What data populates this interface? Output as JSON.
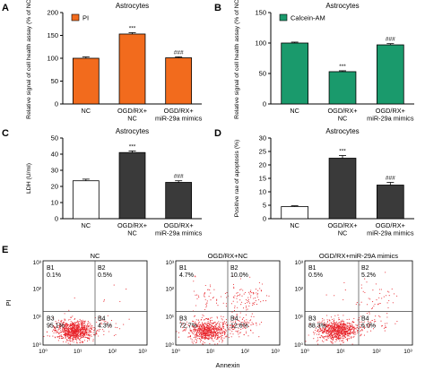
{
  "figure": {
    "panels": [
      {
        "letter": "A",
        "type": "bar",
        "title": "Astrocytes",
        "ylabel": "Relative signal of cell health assay (% of NC)",
        "ylim": [
          0,
          200
        ],
        "yticks": [
          0,
          50,
          100,
          150,
          200
        ],
        "categories": [
          [
            "NC"
          ],
          [
            "OGD/RX+",
            "NC"
          ],
          [
            "OGD/RX+",
            "miR-29a mimics"
          ]
        ],
        "values": [
          100,
          153,
          101
        ],
        "errors": [
          3,
          3,
          2
        ],
        "significance": [
          "",
          "***",
          "###"
        ],
        "legend": "PI",
        "colors": [
          "#f26b1d",
          "#f26b1d",
          "#f26b1d"
        ]
      },
      {
        "letter": "B",
        "type": "bar",
        "title": "Astrocytes",
        "ylabel": "Relative signal of cell health assay (% of NC)",
        "ylim": [
          0,
          150
        ],
        "yticks": [
          0,
          50,
          100,
          150
        ],
        "categories": [
          [
            "NC"
          ],
          [
            "OGD/RX+",
            "NC"
          ],
          [
            "OGD/RX+",
            "miR-29a mimics"
          ]
        ],
        "values": [
          100,
          53,
          97
        ],
        "errors": [
          1.5,
          1.5,
          2
        ],
        "significance": [
          "",
          "***",
          "###"
        ],
        "legend": "Calcein-AM",
        "colors": [
          "#1a9a6c",
          "#1a9a6c",
          "#1a9a6c"
        ]
      },
      {
        "letter": "C",
        "type": "bar",
        "title": "Astrocytes",
        "ylabel": "LDH (U/ml)",
        "ylim": [
          0,
          50
        ],
        "yticks": [
          0,
          10,
          20,
          30,
          40,
          50
        ],
        "categories": [
          [
            "NC"
          ],
          [
            "OGD/RX+",
            "NC"
          ],
          [
            "OGD/RX+",
            "miR-29a mimics"
          ]
        ],
        "values": [
          23.5,
          41,
          22.5
        ],
        "errors": [
          1,
          1,
          1
        ],
        "significance": [
          "",
          "***",
          "###"
        ],
        "legend": "",
        "colors": [
          "#ffffff",
          "#3a3a3a",
          "#3a3a3a"
        ]
      },
      {
        "letter": "D",
        "type": "bar",
        "title": "Astrocytes",
        "ylabel": "Positive rae of apoptosis (%)",
        "ylim": [
          0,
          30
        ],
        "yticks": [
          0,
          5,
          10,
          15,
          20,
          25,
          30
        ],
        "categories": [
          [
            "NC"
          ],
          [
            "OGD/RX+",
            "NC"
          ],
          [
            "OGD/RX+",
            "miR-29a mimics"
          ]
        ],
        "values": [
          4.5,
          22.5,
          12.5
        ],
        "errors": [
          0.3,
          1,
          1
        ],
        "significance": [
          "",
          "***",
          "###"
        ],
        "legend": "",
        "colors": [
          "#ffffff",
          "#3a3a3a",
          "#3a3a3a"
        ]
      }
    ],
    "flow": {
      "letter": "E",
      "ylabel": "PI",
      "xlabel": "Annexin",
      "axis_ticks": [
        "10⁰",
        "10¹",
        "10²",
        "10³"
      ],
      "plots": [
        {
          "title": "NC",
          "q": [
            "B1",
            "B2",
            "B3",
            "B4"
          ],
          "pct": [
            "0.1%",
            "0.5%",
            "95.1%",
            "4.3%"
          ]
        },
        {
          "title": "OGD/RX+NC",
          "q": [
            "B1",
            "B2",
            "B3",
            "B4"
          ],
          "pct": [
            "4.7%",
            "10.0%",
            "72.7%",
            "12.6%"
          ]
        },
        {
          "title": "OGD/RX+miR-29A mimics",
          "q": [
            "B1",
            "B2",
            "B3",
            "B4"
          ],
          "pct": [
            "0.5%",
            "5.2%",
            "88.3%",
            "6.0%"
          ]
        }
      ]
    }
  },
  "chart_data": [
    {
      "type": "bar",
      "title": "Astrocytes",
      "categories": [
        "NC",
        "OGD/RX+ NC",
        "OGD/RX+ miR-29a mimics"
      ],
      "series": [
        {
          "name": "PI",
          "values": [
            100,
            153,
            101
          ]
        }
      ],
      "ylabel": "Relative signal of cell health assay (% of NC)",
      "ylim": [
        0,
        200
      ]
    },
    {
      "type": "bar",
      "title": "Astrocytes",
      "categories": [
        "NC",
        "OGD/RX+ NC",
        "OGD/RX+ miR-29a mimics"
      ],
      "series": [
        {
          "name": "Calcein-AM",
          "values": [
            100,
            53,
            97
          ]
        }
      ],
      "ylabel": "Relative signal of cell health assay (% of NC)",
      "ylim": [
        0,
        150
      ]
    },
    {
      "type": "bar",
      "title": "Astrocytes",
      "categories": [
        "NC",
        "OGD/RX+ NC",
        "OGD/RX+ miR-29a mimics"
      ],
      "values": [
        23.5,
        41,
        22.5
      ],
      "ylabel": "LDH (U/ml)",
      "ylim": [
        0,
        50
      ]
    },
    {
      "type": "bar",
      "title": "Astrocytes",
      "categories": [
        "NC",
        "OGD/RX+ NC",
        "OGD/RX+ miR-29a mimics"
      ],
      "values": [
        4.5,
        22.5,
        12.5
      ],
      "ylabel": "Positive rae of apoptosis (%)",
      "ylim": [
        0,
        30
      ]
    },
    {
      "type": "scatter",
      "title": "NC",
      "xlabel": "Annexin",
      "ylabel": "PI",
      "quadrants": {
        "B1": "0.1%",
        "B2": "0.5%",
        "B3": "95.1%",
        "B4": "4.3%"
      }
    },
    {
      "type": "scatter",
      "title": "OGD/RX+NC",
      "xlabel": "Annexin",
      "ylabel": "PI",
      "quadrants": {
        "B1": "4.7%",
        "B2": "10.0%",
        "B3": "72.7%",
        "B4": "12.6%"
      }
    },
    {
      "type": "scatter",
      "title": "OGD/RX+miR-29A mimics",
      "xlabel": "Annexin",
      "ylabel": "PI",
      "quadrants": {
        "B1": "0.5%",
        "B2": "5.2%",
        "B3": "88.3%",
        "B4": "6.0%"
      }
    }
  ]
}
